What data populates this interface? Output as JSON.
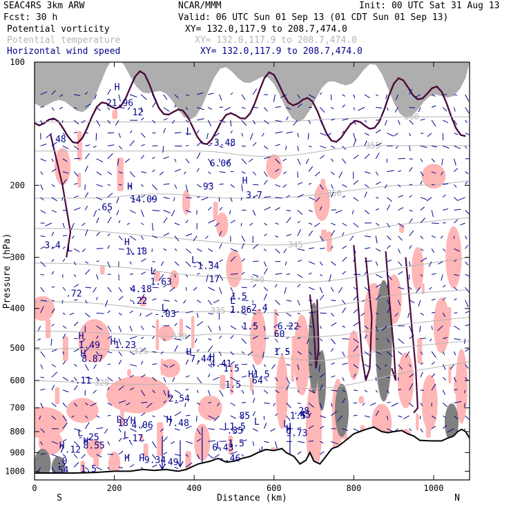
{
  "header": {
    "model": "SEAC4RS  3km ARW",
    "org": "NCAR/MMM",
    "init": "Init: 00 UTC Sat 31 Aug 13",
    "fcst": "Fcst:   30 h",
    "valid": "Valid: 06 UTC Sun 01 Sep 13 (01 CDT Sun 01 Sep 13)"
  },
  "fields": [
    {
      "name": "Potential vorticity",
      "xy": "XY= 132.0,117.9 to 208.7,474.0",
      "color": "#000000"
    },
    {
      "name": "Potential temperature",
      "xy": "XY= 132.0,117.9 to 208.7,474.0",
      "color": "#b4b4b4"
    },
    {
      "name": "Horizontal wind speed",
      "xy": "XY= 132.0,117.9 to 208.7,474.0",
      "color": "#00008b"
    }
  ],
  "chart_data": {
    "type": "cross-section",
    "xlabel": "Distance (km)",
    "ylabel": "Pressure (hPa)",
    "xlim": [
      0,
      1090
    ],
    "ylim": [
      1050,
      100
    ],
    "yscale": "log",
    "xticks": [
      0,
      200,
      400,
      600,
      800,
      1000
    ],
    "yticks": [
      100,
      200,
      300,
      400,
      500,
      600,
      700,
      800,
      900,
      1000
    ],
    "x_end_labels": {
      "left": "S",
      "right": "N"
    },
    "colors": {
      "pv_fill": "#ffb6b6",
      "pv_contour": "#4a0a3a",
      "theta": "#b4b4b4",
      "wind": "#00008b",
      "terrain": "#000000",
      "dark_fill": "#808080"
    },
    "terrain": [
      [
        0,
        1010
      ],
      [
        50,
        1010
      ],
      [
        100,
        1010
      ],
      [
        150,
        1007
      ],
      [
        200,
        1000
      ],
      [
        240,
        1000
      ],
      [
        270,
        990
      ],
      [
        300,
        995
      ],
      [
        330,
        990
      ],
      [
        360,
        1000
      ],
      [
        380,
        990
      ],
      [
        410,
        960
      ],
      [
        440,
        945
      ],
      [
        460,
        930
      ],
      [
        480,
        950
      ],
      [
        500,
        945
      ],
      [
        520,
        930
      ],
      [
        540,
        920
      ],
      [
        560,
        900
      ],
      [
        580,
        885
      ],
      [
        600,
        890
      ],
      [
        620,
        880
      ],
      [
        630,
        900
      ],
      [
        650,
        920
      ],
      [
        665,
        960
      ],
      [
        680,
        940
      ],
      [
        690,
        900
      ],
      [
        700,
        945
      ],
      [
        715,
        960
      ],
      [
        730,
        920
      ],
      [
        745,
        880
      ],
      [
        760,
        870
      ],
      [
        780,
        840
      ],
      [
        800,
        810
      ],
      [
        815,
        800
      ],
      [
        830,
        790
      ],
      [
        850,
        780
      ],
      [
        870,
        800
      ],
      [
        885,
        805
      ],
      [
        900,
        800
      ],
      [
        920,
        795
      ],
      [
        935,
        810
      ],
      [
        950,
        820
      ],
      [
        965,
        840
      ],
      [
        985,
        842
      ],
      [
        1005,
        843
      ],
      [
        1020,
        843
      ],
      [
        1035,
        830
      ],
      [
        1050,
        820
      ],
      [
        1060,
        800
      ],
      [
        1070,
        790
      ],
      [
        1080,
        800
      ],
      [
        1090,
        830
      ]
    ],
    "theta_levels": [
      {
        "label": "320",
        "p": [
          600,
          605,
          610,
          615,
          610,
          612,
          620,
          625,
          630,
          610,
          580,
          560,
          540
        ]
      },
      {
        "label": "325",
        "p": [
          505,
          500,
          505,
          510,
          515,
          510,
          520,
          530,
          540,
          520,
          500,
          490,
          480
        ]
      },
      {
        "label": "330",
        "p": [
          455,
          455,
          460,
          465,
          470,
          460,
          465,
          470,
          470,
          460,
          440,
          430,
          420
        ]
      },
      {
        "label": "335",
        "p": [
          385,
          385,
          390,
          400,
          410,
          405,
          410,
          410,
          400,
          385,
          370,
          365,
          360
        ]
      },
      {
        "label": "340",
        "p": [
          310,
          310,
          315,
          320,
          330,
          335,
          340,
          345,
          345,
          335,
          320,
          310,
          300
        ]
      },
      {
        "label": "345",
        "p": [
          255,
          255,
          260,
          265,
          270,
          275,
          280,
          280,
          275,
          260,
          250,
          245,
          240
        ]
      },
      {
        "label": "350",
        "p": [
          215,
          215,
          215,
          210,
          210,
          215,
          215,
          215,
          210,
          205,
          200,
          200,
          195
        ]
      },
      {
        "label": "355",
        "p": [
          165,
          165,
          165,
          165,
          165,
          165,
          170,
          170,
          165,
          160,
          160,
          160,
          160
        ]
      },
      {
        "label": "360",
        "p": [
          140,
          140,
          140,
          140,
          140,
          140,
          140,
          140,
          138,
          137,
          136,
          136,
          136
        ]
      }
    ],
    "theta_x": [
      0,
      90,
      180,
      270,
      360,
      450,
      540,
      630,
      720,
      810,
      900,
      990,
      1090
    ],
    "theta_labels_shown": [
      "320",
      "325",
      "330",
      "335",
      "335",
      "340",
      "340",
      "345",
      "350",
      "355",
      "350",
      "345",
      "335"
    ],
    "annotations": [
      {
        "x": 52,
        "p": 157,
        "text": "48"
      },
      {
        "x": 200,
        "p": 117,
        "text": "H"
      },
      {
        "x": 180,
        "p": 128,
        "text": "21.96"
      },
      {
        "x": 245,
        "p": 135,
        "text": "12"
      },
      {
        "x": 155,
        "p": 230,
        "text": ".65"
      },
      {
        "x": 25,
        "p": 285,
        "text": "3.4"
      },
      {
        "x": 82,
        "p": 290,
        "text": "L"
      },
      {
        "x": 78,
        "p": 374,
        "text": ".72"
      },
      {
        "x": 240,
        "p": 365,
        "text": "4.18"
      },
      {
        "x": 242,
        "p": 390,
        "text": ".22"
      },
      {
        "x": 318,
        "p": 405,
        "text": "L"
      },
      {
        "x": 300,
        "p": 420,
        "text": "-.03"
      },
      {
        "x": 232,
        "p": 205,
        "text": "H"
      },
      {
        "x": 240,
        "p": 220,
        "text": "14.09"
      },
      {
        "x": 225,
        "p": 280,
        "text": "H"
      },
      {
        "x": 228,
        "p": 295,
        "text": "1.18"
      },
      {
        "x": 290,
        "p": 330,
        "text": "L"
      },
      {
        "x": 290,
        "p": 350,
        "text": "1.63"
      },
      {
        "x": 393,
        "p": 310,
        "text": "L"
      },
      {
        "x": 395,
        "p": 320,
        "text": "-1.34"
      },
      {
        "x": 437,
        "p": 345,
        "text": "17"
      },
      {
        "x": 380,
        "p": 150,
        "text": "L"
      },
      {
        "x": 436,
        "p": 160,
        "text": "-3.48"
      },
      {
        "x": 439,
        "p": 180,
        "text": "6.06"
      },
      {
        "x": 422,
        "p": 205,
        "text": "93"
      },
      {
        "x": 520,
        "p": 198,
        "text": "H"
      },
      {
        "x": 530,
        "p": 215,
        "text": "3.7"
      },
      {
        "x": 490,
        "p": 390,
        "text": "L"
      },
      {
        "x": 490,
        "p": 410,
        "text": "1.86"
      },
      {
        "x": 530,
        "p": 405,
        "text": "-2.4"
      },
      {
        "x": 595,
        "p": 450,
        "text": "-6.22"
      },
      {
        "x": 600,
        "p": 470,
        "text": "60"
      },
      {
        "x": 600,
        "p": 520,
        "text": "1.5"
      },
      {
        "x": 110,
        "p": 475,
        "text": "H"
      },
      {
        "x": 110,
        "p": 500,
        "text": "1.49"
      },
      {
        "x": 115,
        "p": 525,
        "text": "H"
      },
      {
        "x": 118,
        "p": 540,
        "text": "8.87"
      },
      {
        "x": 190,
        "p": 490,
        "text": "H"
      },
      {
        "x": 200,
        "p": 500,
        "text": "1.23"
      },
      {
        "x": 380,
        "p": 520,
        "text": "H"
      },
      {
        "x": 390,
        "p": 540,
        "text": "7.44"
      },
      {
        "x": 438,
        "p": 535,
        "text": "H"
      },
      {
        "x": 440,
        "p": 555,
        "text": "4.41"
      },
      {
        "x": 88,
        "p": 610,
        "text": "-.11"
      },
      {
        "x": 332,
        "p": 660,
        "text": "L"
      },
      {
        "x": 335,
        "p": 675,
        "text": "2.54"
      },
      {
        "x": 205,
        "p": 760,
        "text": "L"
      },
      {
        "x": 208,
        "p": 775,
        "text": "18"
      },
      {
        "x": 240,
        "p": 765,
        "text": "H"
      },
      {
        "x": 243,
        "p": 785,
        "text": "4.06"
      },
      {
        "x": 330,
        "p": 760,
        "text": "H"
      },
      {
        "x": 333,
        "p": 775,
        "text": "7.48"
      },
      {
        "x": 513,
        "p": 745,
        "text": "85"
      },
      {
        "x": 108,
        "p": 820,
        "text": "L"
      },
      {
        "x": 108,
        "p": 840,
        "text": "-.25"
      },
      {
        "x": 122,
        "p": 860,
        "text": "H"
      },
      {
        "x": 122,
        "p": 880,
        "text": "8.55"
      },
      {
        "x": 62,
        "p": 880,
        "text": "H"
      },
      {
        "x": 62,
        "p": 900,
        "text": "7.12"
      },
      {
        "x": 223,
        "p": 830,
        "text": "L"
      },
      {
        "x": 218,
        "p": 845,
        "text": "-.17"
      },
      {
        "x": 550,
        "p": 770,
        "text": "L"
      },
      {
        "x": 475,
        "p": 790,
        "text": "L1.5"
      },
      {
        "x": 482,
        "p": 810,
        "text": ".35"
      },
      {
        "x": 455,
        "p": 880,
        "text": "L"
      },
      {
        "x": 445,
        "p": 890,
        "text": "6.43"
      },
      {
        "x": 485,
        "p": 870,
        "text": "1.5"
      },
      {
        "x": 630,
        "p": 800,
        "text": "H"
      },
      {
        "x": 630,
        "p": 820,
        "text": "9.73"
      },
      {
        "x": 623,
        "p": 780,
        "text": "L"
      },
      {
        "x": 640,
        "p": 745,
        "text": "1.5"
      },
      {
        "x": 648,
        "p": 725,
        "text": ".28"
      },
      {
        "x": 665,
        "p": 740,
        "text": "45"
      },
      {
        "x": 225,
        "p": 945,
        "text": "H"
      },
      {
        "x": 262,
        "p": 945,
        "text": "H"
      },
      {
        "x": 275,
        "p": 955,
        "text": "9.34"
      },
      {
        "x": 320,
        "p": 965,
        "text": ".49"
      },
      {
        "x": 462,
        "p": 945,
        "text": "-.46"
      },
      {
        "x": 55,
        "p": 960,
        "text": ".0"
      },
      {
        "x": 115,
        "p": 1005,
        "text": "1.5"
      },
      {
        "x": 45,
        "p": 1010,
        "text": ".54"
      },
      {
        "x": 492,
        "p": 380,
        "text": "1.5"
      },
      {
        "x": 520,
        "p": 450,
        "text": "1.5"
      },
      {
        "x": 473,
        "p": 570,
        "text": "1.5"
      },
      {
        "x": 477,
        "p": 625,
        "text": "1.5"
      },
      {
        "x": 535,
        "p": 590,
        "text": "H1.5"
      },
      {
        "x": 545,
        "p": 610,
        "text": "64"
      }
    ]
  }
}
